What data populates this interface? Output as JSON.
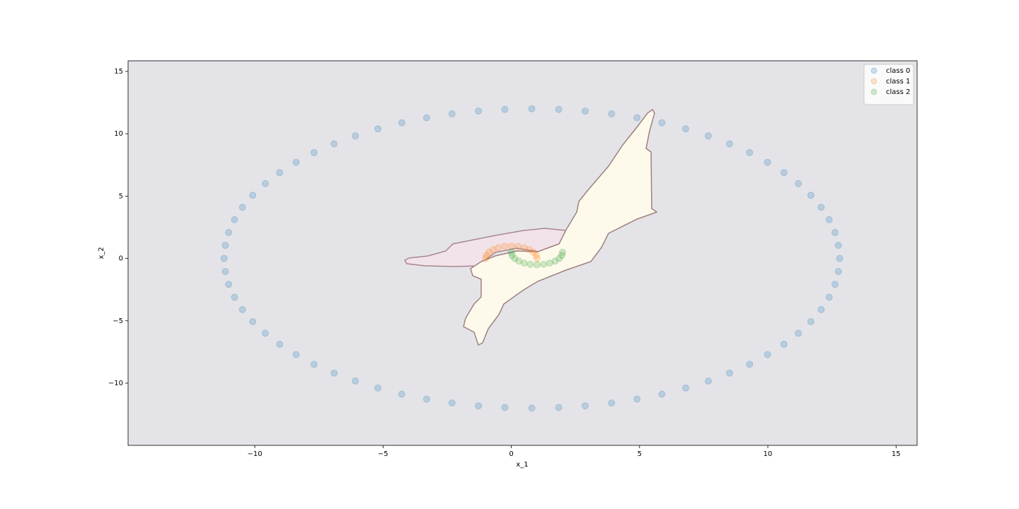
{
  "chart_data": {
    "type": "scatter",
    "x_label": "x_1",
    "y_label": "x_2",
    "xlim": [
      -14.94,
      15.82
    ],
    "ylim": [
      -14.99,
      15.85
    ],
    "xticks": [
      {
        "value": -10,
        "label": "−10"
      },
      {
        "value": -5,
        "label": "−5"
      },
      0,
      5,
      10,
      15
    ],
    "yticks": [
      {
        "value": -10,
        "label": "−10"
      },
      {
        "value": -5,
        "label": "−5"
      },
      0,
      5,
      10,
      15
    ],
    "legend": "upper right",
    "series": [
      {
        "name": "class 0",
        "color": "#1f77b4",
        "x": [
          12.8,
          12.75,
          12.62,
          12.39,
          12.08,
          11.68,
          11.19,
          10.63,
          9.99,
          9.29,
          8.51,
          7.68,
          6.8,
          5.87,
          4.9,
          3.91,
          2.88,
          1.85,
          0.8,
          -0.25,
          -1.28,
          -2.31,
          -3.3,
          -4.27,
          -5.2,
          -6.08,
          -6.91,
          -7.69,
          -8.39,
          -9.03,
          -9.59,
          -10.08,
          -10.48,
          -10.79,
          -11.02,
          -11.15,
          -11.2,
          -11.15,
          -11.02,
          -10.79,
          -10.48,
          -10.08,
          -9.59,
          -9.03,
          -8.39,
          -7.69,
          -6.91,
          -6.08,
          -5.2,
          -4.27,
          -3.3,
          -2.31,
          -1.28,
          -0.25,
          0.8,
          1.85,
          2.88,
          3.91,
          4.9,
          5.87,
          6.8,
          7.68,
          8.51,
          9.29,
          9.99,
          10.63,
          11.19,
          11.68,
          12.08,
          12.39,
          12.62,
          12.75
        ],
        "y": [
          0,
          1.05,
          2.08,
          3.11,
          4.1,
          5.07,
          6,
          6.88,
          7.71,
          8.49,
          9.19,
          9.83,
          10.39,
          10.88,
          11.28,
          11.59,
          11.82,
          11.95,
          12,
          11.95,
          11.82,
          11.59,
          11.28,
          10.88,
          10.39,
          9.83,
          9.19,
          8.49,
          7.71,
          6.88,
          6,
          5.07,
          4.1,
          3.11,
          2.08,
          1.05,
          0,
          -1.05,
          -2.08,
          -3.11,
          -4.1,
          -5.07,
          -6,
          -6.88,
          -7.71,
          -8.49,
          -9.19,
          -9.83,
          -10.39,
          -10.88,
          -11.28,
          -11.59,
          -11.82,
          -11.95,
          -12,
          -11.95,
          -11.82,
          -11.59,
          -11.28,
          -10.88,
          -10.39,
          -9.83,
          -9.19,
          -8.49,
          -7.71,
          -6.88,
          -6,
          -5.07,
          -4.1,
          -3.11,
          -2.08,
          -1.05
        ]
      },
      {
        "name": "class 1",
        "color": "#ff7f0e",
        "x": [
          1,
          0.97,
          0.87,
          0.71,
          0.5,
          0.26,
          0,
          -0.26,
          -0.5,
          -0.71,
          -0.87,
          -0.97,
          -1
        ],
        "y": [
          0,
          0.26,
          0.5,
          0.71,
          0.87,
          0.97,
          1,
          0.97,
          0.87,
          0.71,
          0.5,
          0.26,
          0
        ]
      },
      {
        "name": "class 2",
        "color": "#2ca02c",
        "x": [
          0,
          0.03,
          0.13,
          0.29,
          0.5,
          0.74,
          1,
          1.26,
          1.5,
          1.71,
          1.87,
          1.97,
          2
        ],
        "y": [
          0.5,
          0.24,
          0,
          -0.21,
          -0.37,
          -0.47,
          -0.5,
          -0.47,
          -0.37,
          -0.21,
          0,
          0.24,
          0.5
        ]
      }
    ]
  }
}
